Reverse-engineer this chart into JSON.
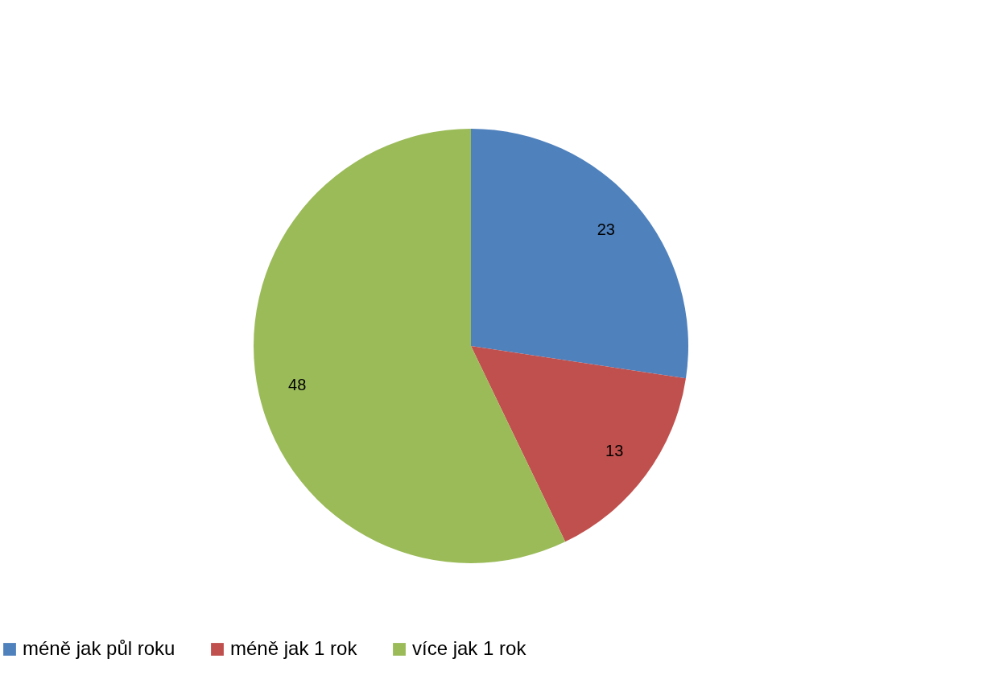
{
  "chart_data": {
    "type": "pie",
    "categories": [
      "méně jak půl roku",
      "méně jak 1 rok",
      "více jak 1 rok"
    ],
    "values": [
      23,
      13,
      48
    ],
    "colors": [
      "#4f81bd",
      "#c0504d",
      "#9bbb59"
    ],
    "data_labels": true,
    "legend": "bottom"
  }
}
